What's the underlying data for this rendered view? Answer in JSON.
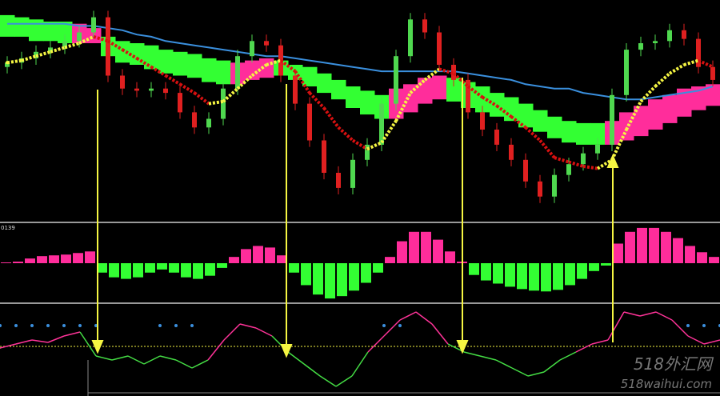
{
  "chart_data": [
    {
      "type": "candlestick",
      "ylim": [
        0,
        100
      ],
      "open": [
        69,
        71,
        73,
        76,
        78,
        81,
        85,
        92,
        65,
        59,
        58,
        59,
        57,
        48,
        41,
        45,
        59,
        74,
        81,
        79,
        65,
        52,
        35,
        20,
        13,
        26,
        33,
        52,
        74,
        91,
        85,
        70,
        63,
        48,
        40,
        33,
        26,
        16,
        9,
        19,
        24,
        29,
        33,
        56,
        77,
        80,
        81,
        86,
        82,
        69
      ],
      "high": [
        74,
        76,
        79,
        81,
        84,
        88,
        95,
        95,
        68,
        62,
        62,
        62,
        60,
        51,
        48,
        62,
        77,
        84,
        84,
        82,
        68,
        55,
        38,
        23,
        29,
        36,
        55,
        77,
        94,
        94,
        88,
        73,
        66,
        51,
        43,
        36,
        29,
        19,
        22,
        27,
        32,
        36,
        59,
        80,
        83,
        84,
        89,
        89,
        85,
        72
      ],
      "low": [
        66,
        68,
        70,
        73,
        75,
        78,
        82,
        62,
        56,
        55,
        55,
        54,
        45,
        38,
        38,
        42,
        56,
        71,
        76,
        62,
        49,
        32,
        17,
        10,
        10,
        23,
        30,
        49,
        71,
        82,
        67,
        60,
        45,
        37,
        30,
        23,
        13,
        6,
        6,
        16,
        21,
        26,
        30,
        53,
        74,
        77,
        78,
        79,
        66,
        60
      ],
      "close": [
        71,
        73,
        76,
        78,
        81,
        85,
        92,
        65,
        59,
        58,
        59,
        57,
        48,
        41,
        45,
        59,
        74,
        81,
        79,
        65,
        52,
        35,
        20,
        13,
        26,
        33,
        52,
        74,
        91,
        85,
        70,
        63,
        48,
        40,
        33,
        26,
        16,
        9,
        19,
        24,
        29,
        33,
        56,
        77,
        80,
        81,
        86,
        82,
        69,
        63
      ],
      "up_color": "#4fd84f",
      "down_color": "#e02020",
      "band": {
        "upper": [
          93,
          92,
          91,
          90,
          90,
          89,
          87,
          83,
          81,
          80,
          79,
          77,
          76,
          75,
          73,
          72,
          71,
          72,
          73,
          72,
          70,
          69,
          66,
          63,
          60,
          58,
          56,
          59,
          61,
          64,
          65,
          64,
          62,
          60,
          57,
          55,
          52,
          49,
          46,
          44,
          43,
          43,
          44,
          48,
          51,
          54,
          56,
          59,
          60,
          61
        ],
        "lower": [
          83,
          83,
          81,
          81,
          80,
          80,
          80,
          74,
          71,
          70,
          68,
          66,
          65,
          64,
          62,
          61,
          61,
          63,
          64,
          65,
          63,
          60,
          57,
          54,
          50,
          47,
          45,
          45,
          48,
          52,
          54,
          53,
          50,
          48,
          46,
          44,
          41,
          39,
          36,
          34,
          33,
          33,
          33,
          35,
          37,
          40,
          43,
          46,
          49,
          51
        ],
        "colors": [
          "#33ff33",
          "#33ff33",
          "#33ff33",
          "#33ff33",
          "#33ff33",
          "#ff2d9b",
          "#ff2d9b",
          "#33ff33",
          "#33ff33",
          "#33ff33",
          "#33ff33",
          "#33ff33",
          "#33ff33",
          "#33ff33",
          "#33ff33",
          "#33ff33",
          "#ff2d9b",
          "#ff2d9b",
          "#ff2d9b",
          "#33ff33",
          "#33ff33",
          "#33ff33",
          "#33ff33",
          "#33ff33",
          "#33ff33",
          "#33ff33",
          "#33ff33",
          "#ff2d9b",
          "#ff2d9b",
          "#ff2d9b",
          "#ff2d9b",
          "#33ff33",
          "#33ff33",
          "#33ff33",
          "#33ff33",
          "#33ff33",
          "#33ff33",
          "#33ff33",
          "#33ff33",
          "#33ff33",
          "#33ff33",
          "#33ff33",
          "#ff2d9b",
          "#ff2d9b",
          "#ff2d9b",
          "#ff2d9b",
          "#ff2d9b",
          "#ff2d9b",
          "#ff2d9b",
          "#ff2d9b"
        ]
      },
      "ma_line": {
        "color": "#3a8fdd",
        "values": [
          89,
          89,
          89,
          89,
          89,
          88,
          88,
          87,
          86,
          84,
          83,
          81,
          80,
          79,
          78,
          77,
          76,
          75,
          74,
          74,
          73,
          72,
          71,
          70,
          69,
          68,
          67,
          67,
          67,
          67,
          67,
          67,
          66,
          65,
          64,
          63,
          61,
          60,
          59,
          59,
          57,
          56,
          55,
          54,
          54,
          55,
          56,
          57,
          58,
          60
        ]
      },
      "signal_line": {
        "rise_color": "#f5f542",
        "fall_color": "#d81010",
        "values": [
          71,
          72,
          74,
          76,
          78,
          80,
          83,
          81,
          77,
          73,
          69,
          65,
          61,
          57,
          52,
          53,
          59,
          65,
          70,
          72,
          67,
          57,
          50,
          41,
          35,
          31,
          34,
          44,
          57,
          63,
          68,
          66,
          60,
          55,
          51,
          46,
          41,
          35,
          27,
          25,
          23,
          22,
          26,
          40,
          53,
          60,
          66,
          70,
          72,
          69
        ]
      }
    },
    {
      "type": "bar",
      "label": "0139",
      "ylim": [
        -50,
        50
      ],
      "pos_color": "#ff2d9b",
      "neg_color": "#33ff33",
      "values": [
        1,
        2,
        6,
        9,
        10,
        11,
        13,
        15,
        -12,
        -18,
        -20,
        -18,
        -12,
        -8,
        -12,
        -18,
        -20,
        -16,
        -6,
        8,
        18,
        22,
        20,
        10,
        -12,
        -28,
        -40,
        -45,
        -42,
        -35,
        -25,
        -12,
        8,
        28,
        40,
        40,
        30,
        15,
        2,
        -15,
        -22,
        -26,
        -30,
        -33,
        -35,
        -36,
        -34,
        -28,
        -20,
        -10,
        -3,
        25,
        40,
        45,
        45,
        40,
        32,
        22,
        14,
        8
      ]
    },
    {
      "type": "line",
      "ylim": [
        -100,
        100
      ],
      "pos_color": "#ff3399",
      "neg_color": "#44dd44",
      "reference": 0,
      "reference_color": "#f5f542",
      "dot_color": "#3a8fdd",
      "values": [
        -4,
        6,
        16,
        10,
        26,
        36,
        -24,
        -34,
        -24,
        -44,
        -24,
        -34,
        -54,
        -34,
        16,
        56,
        46,
        26,
        -14,
        -44,
        -74,
        -100,
        -74,
        -14,
        26,
        66,
        86,
        56,
        6,
        -14,
        -24,
        -34,
        -54,
        -74,
        -64,
        -34,
        -14,
        6,
        16,
        86,
        76,
        86,
        66,
        26,
        6,
        16
      ],
      "dots": [
        52,
        52,
        52,
        52,
        52,
        52,
        52,
        null,
        null,
        null,
        52,
        52,
        52,
        null,
        null,
        null,
        null,
        null,
        null,
        null,
        null,
        null,
        null,
        null,
        52,
        52,
        null,
        null,
        null,
        null,
        null,
        null,
        null,
        null,
        null,
        null,
        null,
        null,
        null,
        null,
        null,
        null,
        null,
        52,
        52,
        52
      ]
    }
  ],
  "watermark": {
    "title": "518外汇网",
    "url": "518waihui.com"
  }
}
